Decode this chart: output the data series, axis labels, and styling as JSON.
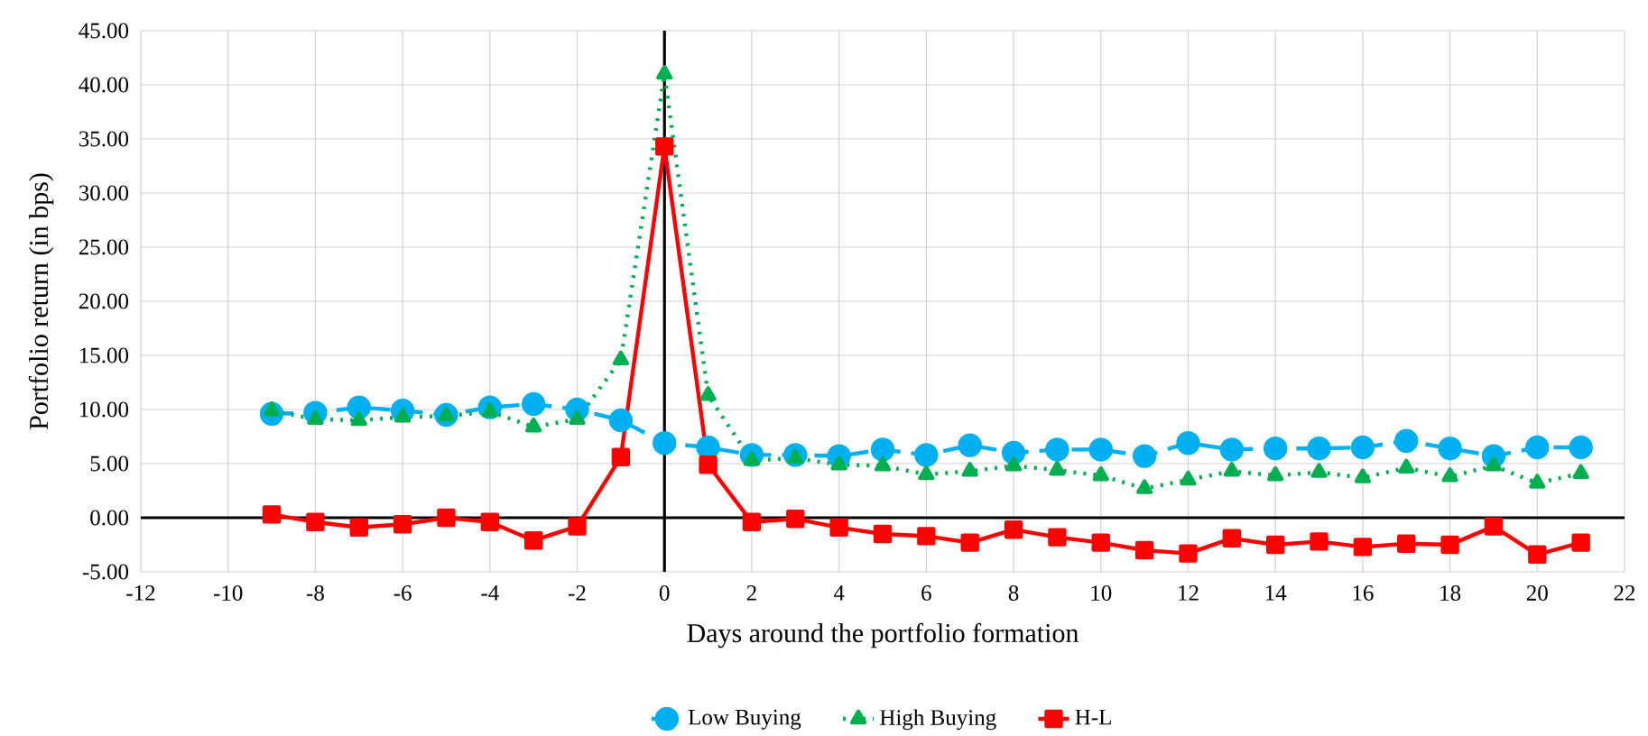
{
  "chart_data": {
    "type": "line",
    "xlabel": "Days around the portfolio formation",
    "ylabel": "Portfolio return (in bps)",
    "x": [
      -9,
      -8,
      -7,
      -6,
      -5,
      -4,
      -3,
      -2,
      -1,
      0,
      1,
      2,
      3,
      4,
      5,
      6,
      7,
      8,
      9,
      10,
      11,
      12,
      13,
      14,
      15,
      16,
      17,
      18,
      19,
      20,
      21
    ],
    "series": [
      {
        "name": "Low Buying",
        "color": "#00b0f0",
        "marker": "circle",
        "line_style": "dashed",
        "values": [
          9.6,
          9.7,
          10.2,
          9.9,
          9.5,
          10.2,
          10.5,
          10.0,
          9.0,
          6.9,
          6.5,
          5.8,
          5.8,
          5.7,
          6.3,
          5.8,
          6.7,
          6.0,
          6.3,
          6.3,
          5.7,
          6.9,
          6.3,
          6.4,
          6.4,
          6.5,
          7.1,
          6.4,
          5.7,
          6.5,
          6.5
        ]
      },
      {
        "name": "High Buying",
        "color": "#00b050",
        "marker": "triangle",
        "line_style": "dotted",
        "values": [
          9.9,
          9.1,
          9.0,
          9.3,
          9.4,
          9.8,
          8.4,
          9.1,
          14.6,
          41.0,
          11.3,
          5.3,
          5.5,
          4.9,
          4.8,
          4.0,
          4.3,
          4.8,
          4.4,
          3.9,
          2.7,
          3.5,
          4.3,
          3.9,
          4.2,
          3.7,
          4.6,
          3.8,
          4.8,
          3.2,
          4.1
        ]
      },
      {
        "name": "H-L",
        "color": "#ff0000",
        "marker": "square",
        "line_style": "solid",
        "values": [
          0.3,
          -0.4,
          -0.9,
          -0.6,
          0.0,
          -0.4,
          -2.1,
          -0.8,
          5.6,
          34.3,
          4.9,
          -0.4,
          -0.1,
          -0.9,
          -1.5,
          -1.7,
          -2.3,
          -1.1,
          -1.8,
          -2.3,
          -3.0,
          -3.3,
          -1.9,
          -2.5,
          -2.2,
          -2.7,
          -2.4,
          -2.5,
          -0.8,
          -3.4,
          -2.3
        ]
      }
    ],
    "xlim": [
      -12,
      22
    ],
    "xticks": [
      -12,
      -10,
      -8,
      -6,
      -4,
      -2,
      0,
      2,
      4,
      6,
      8,
      10,
      12,
      14,
      16,
      18,
      20,
      22
    ],
    "ylim": [
      -5,
      45
    ],
    "yticks": [
      {
        "value": -5,
        "label": "-5.00"
      },
      {
        "value": 0,
        "label": "0.00"
      },
      {
        "value": 5,
        "label": "5.00"
      },
      {
        "value": 10,
        "label": "10.00"
      },
      {
        "value": 15,
        "label": "15.00"
      },
      {
        "value": 20,
        "label": "20.00"
      },
      {
        "value": 25,
        "label": "25.00"
      },
      {
        "value": 30,
        "label": "30.00"
      },
      {
        "value": 35,
        "label": "35.00"
      },
      {
        "value": 40,
        "label": "40.00"
      },
      {
        "value": 45,
        "label": "45.00"
      }
    ],
    "grid": true,
    "legend": "bottom"
  }
}
